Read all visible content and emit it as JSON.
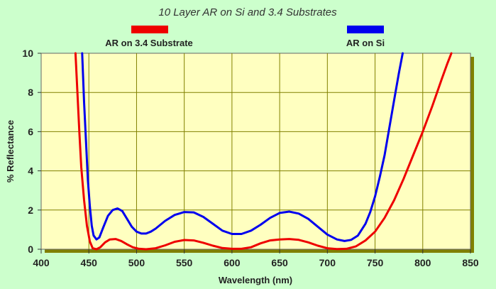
{
  "chart_data": {
    "type": "line",
    "title": "10 Layer AR on Si and 3.4 Substrates",
    "xlabel": "Wavelength (nm)",
    "ylabel": "% Reflectance",
    "xlim": [
      400,
      850
    ],
    "ylim": [
      0,
      10
    ],
    "x_ticks": [
      "400",
      "450",
      "500",
      "550",
      "600",
      "650",
      "700",
      "750",
      "800",
      "850"
    ],
    "y_ticks": [
      "0",
      "2",
      "4",
      "6",
      "8",
      "10"
    ],
    "grid": true,
    "legend_position": "top",
    "plot_background": "#ffffc0",
    "series": [
      {
        "name": "AR on 3.4 Substrate",
        "color": "#ee0000",
        "points": [
          [
            436,
            10
          ],
          [
            438,
            8
          ],
          [
            440,
            6
          ],
          [
            442,
            4.2
          ],
          [
            445,
            2.5
          ],
          [
            448,
            1.2
          ],
          [
            451,
            0.4
          ],
          [
            454,
            0.05
          ],
          [
            458,
            0
          ],
          [
            462,
            0.1
          ],
          [
            467,
            0.35
          ],
          [
            472,
            0.5
          ],
          [
            478,
            0.52
          ],
          [
            484,
            0.42
          ],
          [
            490,
            0.25
          ],
          [
            496,
            0.1
          ],
          [
            502,
            0.03
          ],
          [
            510,
            0
          ],
          [
            520,
            0.05
          ],
          [
            530,
            0.2
          ],
          [
            540,
            0.38
          ],
          [
            550,
            0.47
          ],
          [
            560,
            0.45
          ],
          [
            570,
            0.33
          ],
          [
            580,
            0.18
          ],
          [
            590,
            0.06
          ],
          [
            600,
            0.02
          ],
          [
            610,
            0.02
          ],
          [
            620,
            0.1
          ],
          [
            630,
            0.3
          ],
          [
            640,
            0.45
          ],
          [
            650,
            0.5
          ],
          [
            660,
            0.52
          ],
          [
            670,
            0.48
          ],
          [
            680,
            0.35
          ],
          [
            690,
            0.18
          ],
          [
            700,
            0.05
          ],
          [
            710,
            0.01
          ],
          [
            720,
            0.02
          ],
          [
            730,
            0.15
          ],
          [
            740,
            0.45
          ],
          [
            750,
            0.9
          ],
          [
            760,
            1.6
          ],
          [
            770,
            2.5
          ],
          [
            780,
            3.6
          ],
          [
            790,
            4.8
          ],
          [
            800,
            6.0
          ],
          [
            810,
            7.3
          ],
          [
            820,
            8.7
          ],
          [
            826,
            9.5
          ],
          [
            830,
            10
          ]
        ]
      },
      {
        "name": "AR on Si",
        "color": "#0000ee",
        "points": [
          [
            443,
            10
          ],
          [
            445,
            7.5
          ],
          [
            447,
            5.5
          ],
          [
            449,
            3.5
          ],
          [
            451,
            2.2
          ],
          [
            453,
            1.2
          ],
          [
            455,
            0.7
          ],
          [
            458,
            0.5
          ],
          [
            461,
            0.6
          ],
          [
            465,
            1.1
          ],
          [
            470,
            1.7
          ],
          [
            475,
            2.0
          ],
          [
            480,
            2.08
          ],
          [
            485,
            1.95
          ],
          [
            490,
            1.55
          ],
          [
            495,
            1.15
          ],
          [
            500,
            0.9
          ],
          [
            505,
            0.8
          ],
          [
            510,
            0.8
          ],
          [
            515,
            0.9
          ],
          [
            520,
            1.05
          ],
          [
            530,
            1.45
          ],
          [
            540,
            1.75
          ],
          [
            550,
            1.9
          ],
          [
            560,
            1.88
          ],
          [
            570,
            1.65
          ],
          [
            580,
            1.3
          ],
          [
            590,
            0.95
          ],
          [
            600,
            0.78
          ],
          [
            610,
            0.78
          ],
          [
            620,
            0.95
          ],
          [
            630,
            1.25
          ],
          [
            640,
            1.6
          ],
          [
            650,
            1.85
          ],
          [
            660,
            1.92
          ],
          [
            670,
            1.82
          ],
          [
            680,
            1.55
          ],
          [
            690,
            1.15
          ],
          [
            700,
            0.75
          ],
          [
            710,
            0.5
          ],
          [
            718,
            0.42
          ],
          [
            725,
            0.48
          ],
          [
            732,
            0.7
          ],
          [
            740,
            1.3
          ],
          [
            745,
            1.9
          ],
          [
            750,
            2.7
          ],
          [
            755,
            3.7
          ],
          [
            760,
            4.8
          ],
          [
            765,
            6.2
          ],
          [
            770,
            7.6
          ],
          [
            775,
            9.0
          ],
          [
            779,
            10
          ]
        ]
      }
    ]
  }
}
